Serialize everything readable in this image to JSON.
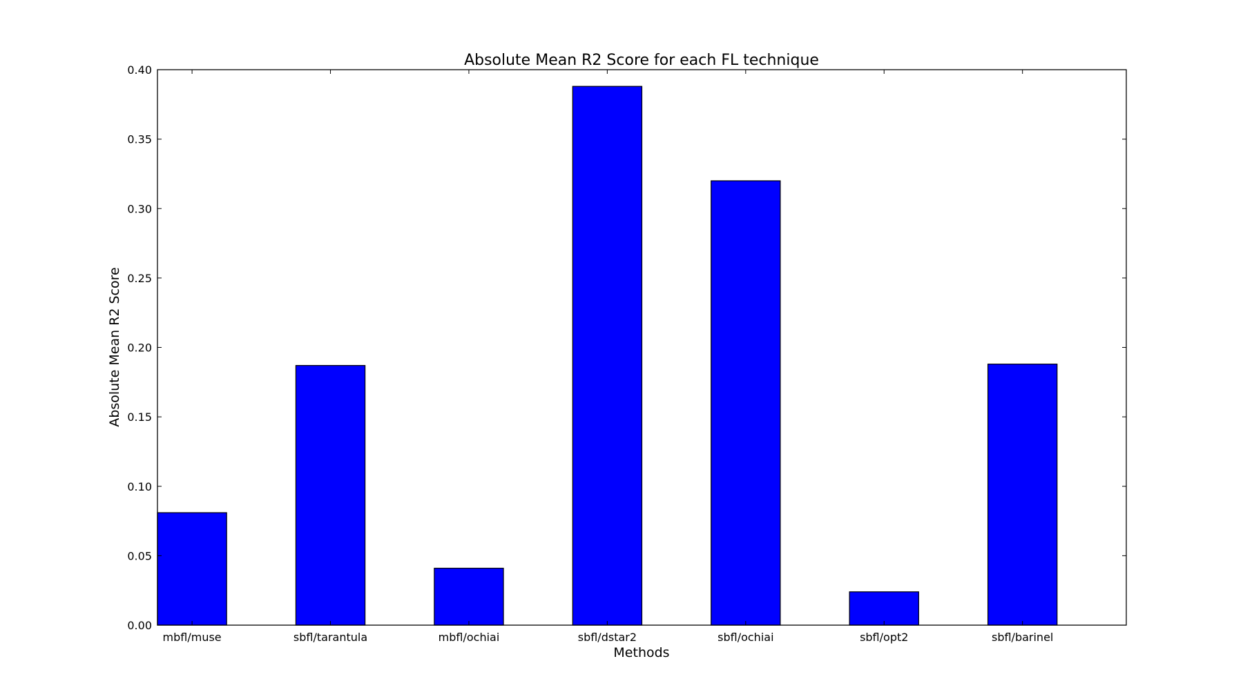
{
  "chart_data": {
    "type": "bar",
    "title": "Absolute Mean R2 Score for each FL technique",
    "xlabel": "Methods",
    "ylabel": "Absolute Mean R2 Score",
    "categories": [
      "mbfl/muse",
      "sbfl/tarantula",
      "mbfl/ochiai",
      "sbfl/dstar2",
      "sbfl/ochiai",
      "sbfl/opt2",
      "sbfl/barinel"
    ],
    "values": [
      0.081,
      0.187,
      0.041,
      0.388,
      0.32,
      0.024,
      0.188
    ],
    "ylim": [
      0.0,
      0.4
    ],
    "yticks": [
      "0.00",
      "0.05",
      "0.10",
      "0.15",
      "0.20",
      "0.25",
      "0.30",
      "0.35",
      "0.40"
    ],
    "bar_color": "#0000ff",
    "edge_color": "#000000",
    "grid": false,
    "legend": "none"
  }
}
